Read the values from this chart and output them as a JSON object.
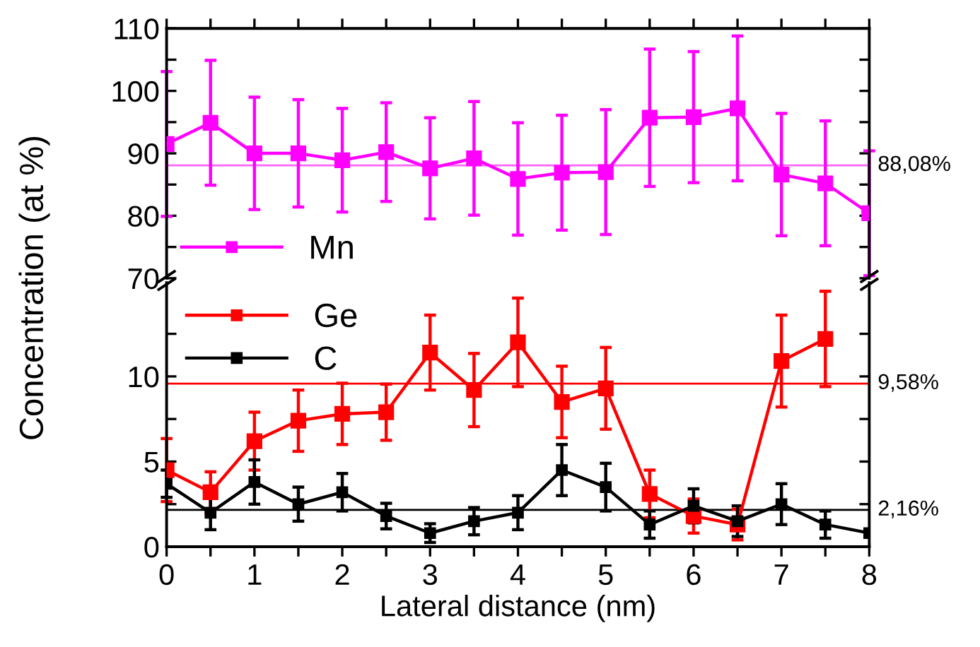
{
  "chart_data": [
    {
      "type": "line",
      "ylabel": "Concentration (at %)",
      "xlim": [
        0,
        8
      ],
      "ylim": [
        70,
        110
      ],
      "xticks": [
        {
          "value": 0,
          "label": null
        },
        {
          "value": 0.5,
          "label": null
        },
        {
          "value": 1,
          "label": null
        },
        {
          "value": 1.5,
          "label": null
        },
        {
          "value": 2,
          "label": null
        },
        {
          "value": 2.5,
          "label": null
        },
        {
          "value": 3,
          "label": null
        },
        {
          "value": 3.5,
          "label": null
        },
        {
          "value": 4,
          "label": null
        },
        {
          "value": 4.5,
          "label": null
        },
        {
          "value": 5,
          "label": null
        },
        {
          "value": 5.5,
          "label": null
        },
        {
          "value": 6,
          "label": null
        },
        {
          "value": 6.5,
          "label": null
        },
        {
          "value": 7,
          "label": null
        },
        {
          "value": 7.5,
          "label": null
        },
        {
          "value": 8,
          "label": null
        }
      ],
      "yticks": [
        70,
        {
          "value": 75,
          "label": null
        },
        80,
        {
          "value": 85,
          "label": null
        },
        90,
        {
          "value": 95,
          "label": null
        },
        100,
        {
          "value": 105,
          "label": null
        },
        110
      ],
      "tick_labels": "y",
      "marker": "square",
      "line_style": "solid",
      "grid": false,
      "legend": "bottom left",
      "x": [
        0,
        0.5,
        1,
        1.5,
        2,
        2.5,
        3,
        3.5,
        4,
        4.5,
        5,
        5.5,
        6,
        6.5,
        7,
        7.5,
        8
      ],
      "series": [
        {
          "name": "Mn",
          "color": "#ff00ff",
          "values": [
            91.5,
            94.9,
            90.0,
            90.0,
            88.9,
            90.2,
            87.6,
            89.2,
            85.9,
            86.9,
            87.0,
            95.7,
            95.8,
            97.2,
            86.6,
            85.2,
            80.4
          ],
          "errors": [
            11.6,
            10,
            9,
            8.6,
            8.3,
            7.9,
            8.1,
            9.1,
            9,
            9.2,
            10,
            11,
            10.5,
            11.6,
            9.8,
            10,
            10
          ]
        }
      ],
      "ref_lines": [
        {
          "axis": "y",
          "value": 88.08,
          "label": "88,08%",
          "color": "#ff66ff"
        }
      ]
    },
    {
      "type": "line",
      "xlabel": "Lateral distance (nm)",
      "xlim": [
        0,
        8
      ],
      "ylim": [
        0,
        15.5
      ],
      "xticks": [
        0,
        {
          "value": 0.5,
          "label": null
        },
        1,
        {
          "value": 1.5,
          "label": null
        },
        2,
        {
          "value": 2.5,
          "label": null
        },
        3,
        {
          "value": 3.5,
          "label": null
        },
        4,
        {
          "value": 4.5,
          "label": null
        },
        5,
        {
          "value": 5.5,
          "label": null
        },
        6,
        {
          "value": 6.5,
          "label": null
        },
        7,
        {
          "value": 7.5,
          "label": null
        },
        8
      ],
      "yticks": [
        0,
        {
          "value": 2.5,
          "label": null
        },
        5,
        {
          "value": 7.5,
          "label": null
        },
        10,
        {
          "value": 12.5,
          "label": null
        }
      ],
      "marker": "square",
      "line_style": "solid",
      "grid": false,
      "legend": "top left",
      "x": [
        0,
        0.5,
        1,
        1.5,
        2,
        2.5,
        3,
        3.5,
        4,
        4.5,
        5,
        5.5,
        6,
        6.5,
        7,
        7.5,
        8
      ],
      "series": [
        {
          "name": "Ge",
          "color": "#ff0000",
          "values": [
            4.5,
            3.2,
            6.2,
            7.4,
            7.8,
            7.9,
            11.4,
            9.2,
            12.0,
            8.5,
            9.3,
            3.1,
            1.8,
            1.3,
            10.9,
            12.2,
            null
          ],
          "errors": [
            1.85,
            1.2,
            1.7,
            1.8,
            1.8,
            1.65,
            2.2,
            2.15,
            2.6,
            2.1,
            2.4,
            1.4,
            1.0,
            0.9,
            2.7,
            2.8,
            null
          ]
        },
        {
          "name": "C",
          "color": "#000000",
          "values": [
            3.7,
            2.0,
            3.8,
            2.5,
            3.2,
            1.8,
            0.8,
            1.5,
            2.0,
            4.5,
            3.5,
            1.3,
            2.4,
            1.5,
            2.5,
            1.3,
            0.8
          ],
          "errors": [
            0.8,
            1.0,
            1.3,
            1.0,
            1.1,
            0.75,
            0.55,
            0.8,
            1.0,
            1.5,
            1.4,
            0.8,
            1.0,
            0.9,
            1.2,
            0.8,
            null
          ]
        }
      ],
      "ref_lines": [
        {
          "axis": "y",
          "value": 9.58,
          "label": "9,58%",
          "color": "#ff0000"
        },
        {
          "axis": "y",
          "value": 2.16,
          "label": "2,16%",
          "color": "#000000"
        }
      ]
    }
  ]
}
